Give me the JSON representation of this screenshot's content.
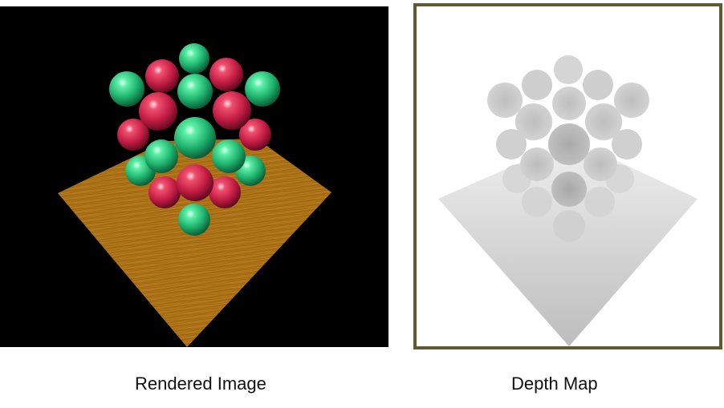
{
  "captions": {
    "rendered": "Rendered Image",
    "depth": "Depth Map"
  },
  "colors": {
    "render_background": "#000000",
    "floor_wood": "#b07515",
    "sphere_green": "#2fcf84",
    "sphere_red": "#d8284e",
    "depth_frame": "#5f5a31",
    "depth_background": "#ffffff"
  }
}
